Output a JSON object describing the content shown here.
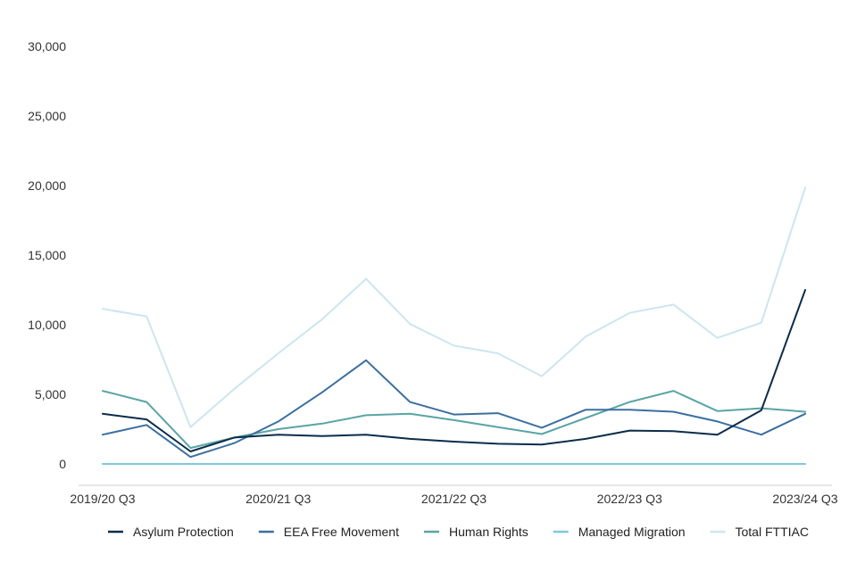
{
  "chart_data": {
    "type": "line",
    "title": "",
    "xlabel": "",
    "ylabel": "",
    "ylim": [
      0,
      30000
    ],
    "y_ticks": [
      0,
      5000,
      10000,
      15000,
      20000,
      25000,
      30000
    ],
    "y_tick_labels": [
      "0",
      "5,000",
      "10,000",
      "15,000",
      "20,000",
      "25,000",
      "30,000"
    ],
    "x_count": 17,
    "x_tick_indices": [
      0,
      4,
      8,
      12,
      16
    ],
    "x_tick_labels": [
      "2019/20 Q3",
      "2020/21 Q3",
      "2021/22 Q3",
      "2022/23 Q3",
      "2023/24 Q3"
    ],
    "grid": false,
    "legend_position": "bottom",
    "series": [
      {
        "name": "Asylum Protection",
        "color": "#0b2c4a",
        "values": [
          3600,
          3200,
          900,
          1900,
          2100,
          2000,
          2100,
          1800,
          1600,
          1450,
          1400,
          1800,
          2400,
          2350,
          2100,
          3850,
          12500
        ]
      },
      {
        "name": "EEA Free Movement",
        "color": "#3b6fa0",
        "values": [
          2100,
          2800,
          500,
          1500,
          3050,
          5150,
          7450,
          4450,
          3550,
          3650,
          2600,
          3900,
          3900,
          3750,
          3050,
          2100,
          3600
        ]
      },
      {
        "name": "Human Rights",
        "color": "#5aa4a4",
        "values": [
          5250,
          4450,
          1150,
          1900,
          2500,
          2900,
          3500,
          3600,
          3150,
          2650,
          2150,
          3300,
          4450,
          5250,
          3800,
          4000,
          3750
        ]
      },
      {
        "name": "Managed Migration",
        "color": "#7ec8e0",
        "values": [
          0,
          0,
          0,
          0,
          0,
          0,
          0,
          0,
          0,
          0,
          0,
          0,
          0,
          0,
          0,
          0,
          0
        ]
      },
      {
        "name": "Total FTTIAC",
        "color": "#cce6ef",
        "values": [
          11150,
          10600,
          2650,
          5400,
          7950,
          10400,
          13300,
          10050,
          8500,
          7950,
          6300,
          9150,
          10850,
          11450,
          9050,
          10150,
          19850
        ]
      }
    ]
  }
}
